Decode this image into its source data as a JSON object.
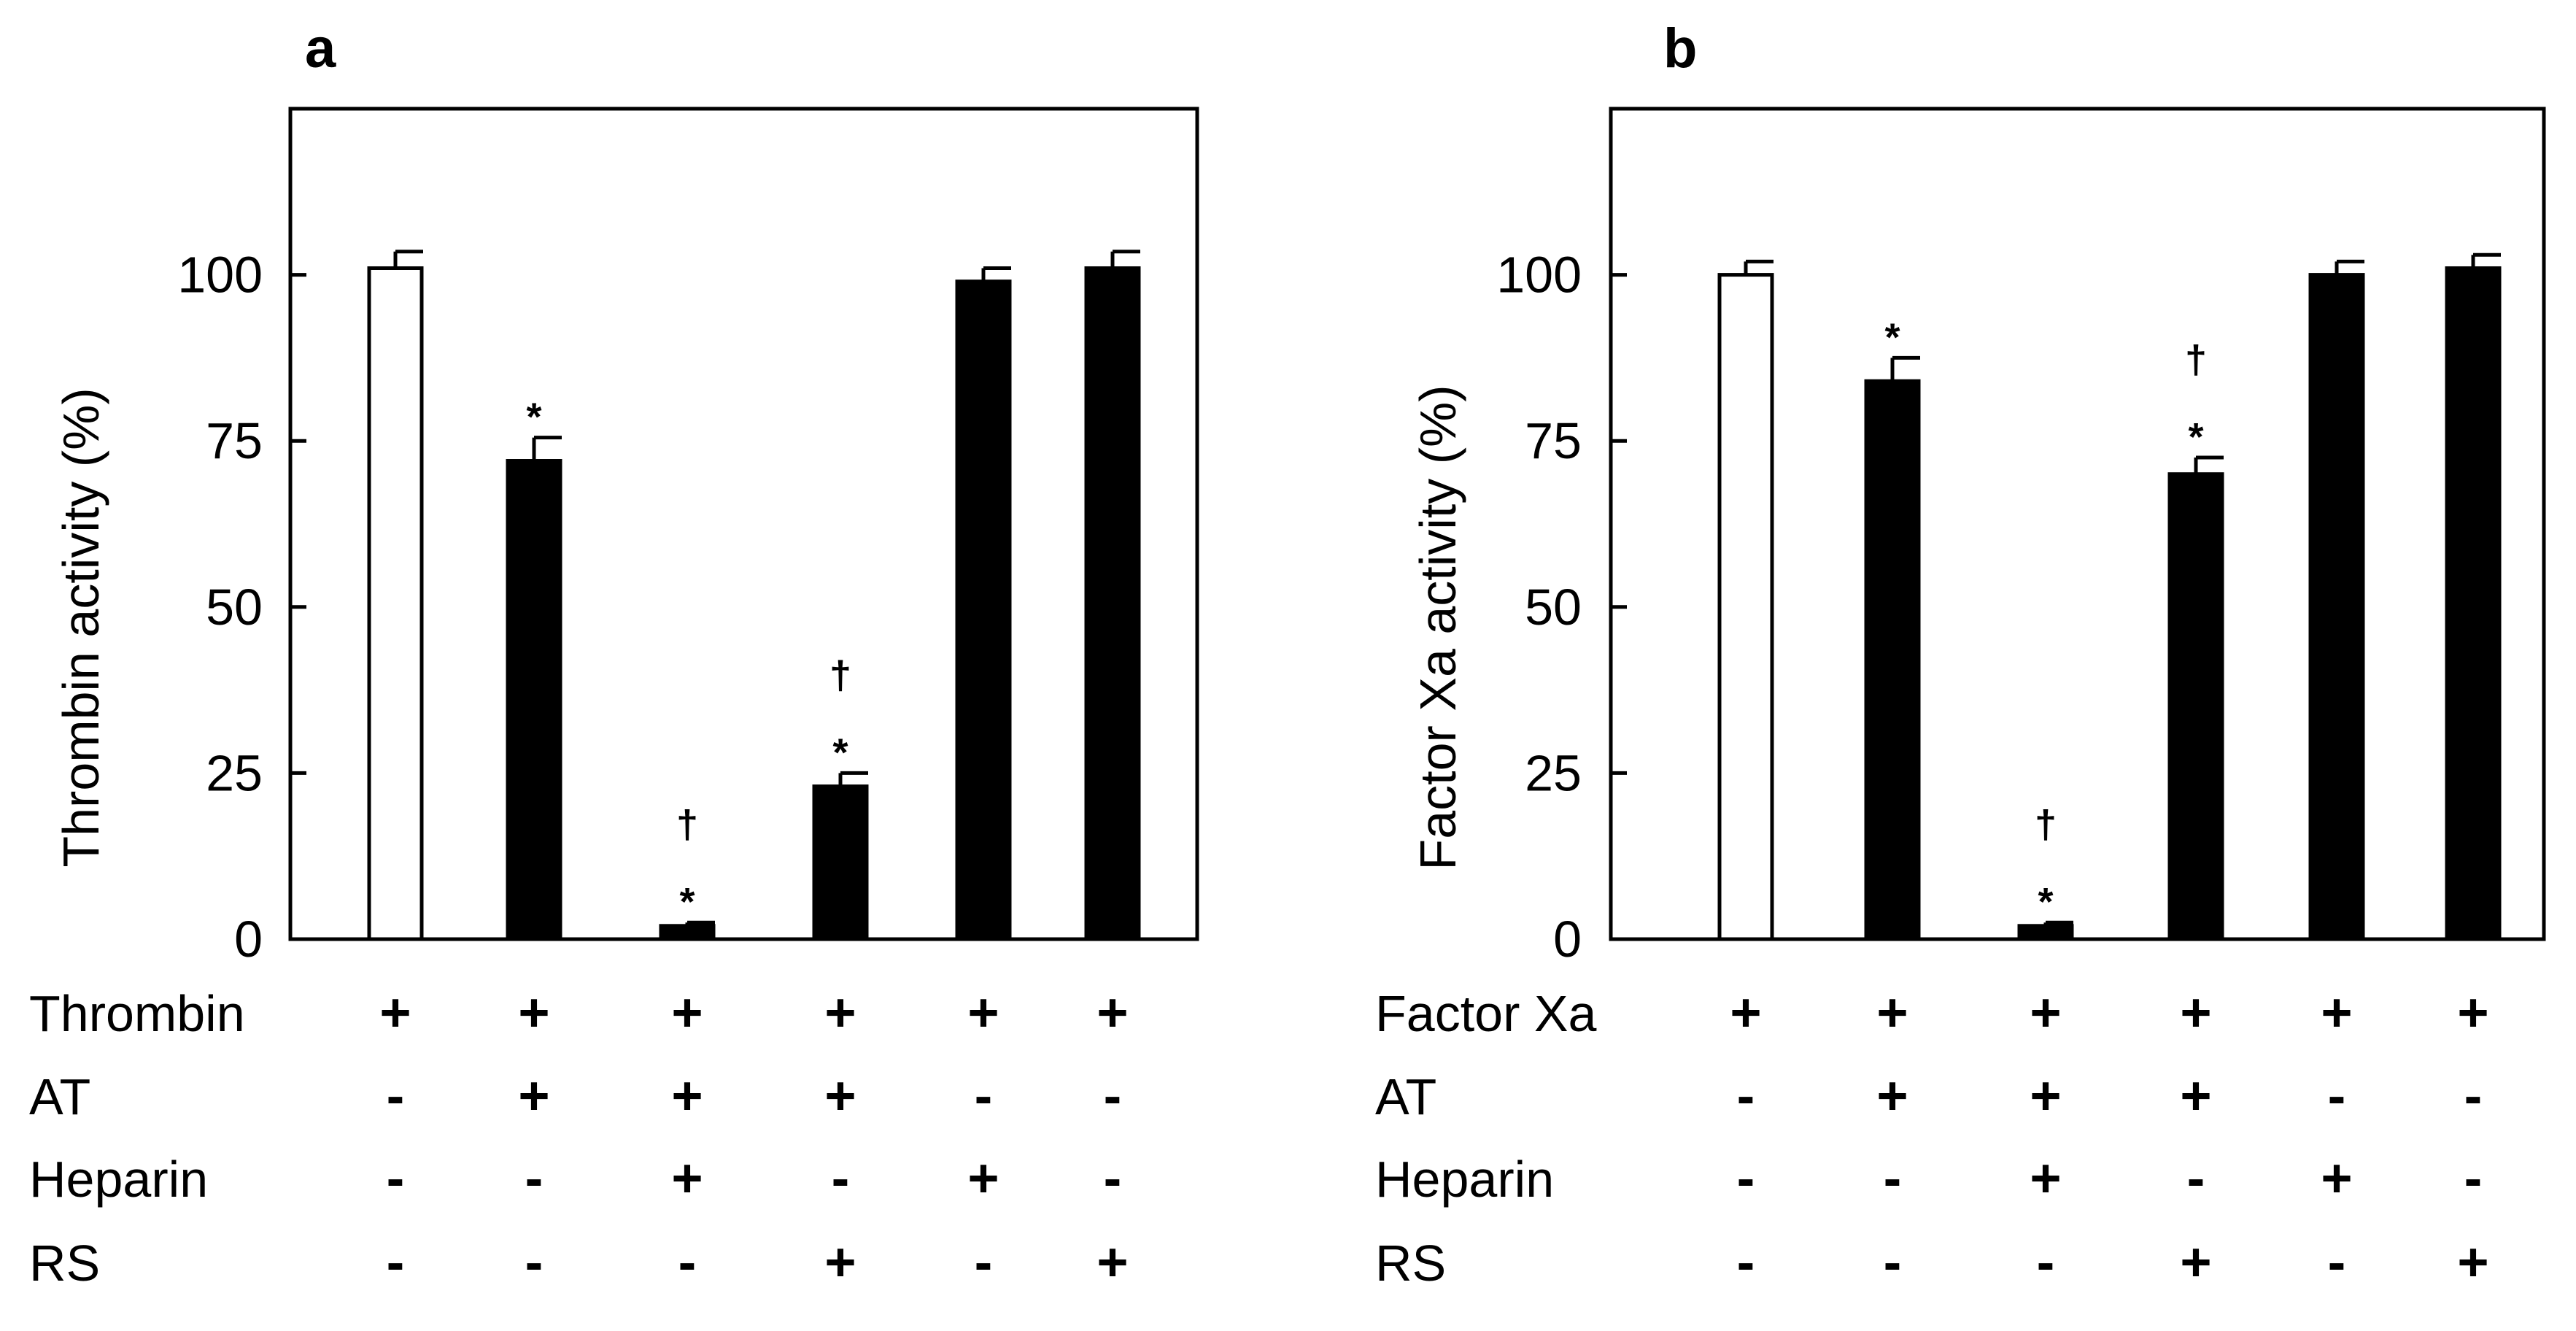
{
  "chart_data": [
    {
      "type": "bar",
      "panel": "a",
      "ylabel": "Thrombin  activity (%)",
      "ylim": [
        0,
        125
      ],
      "yticks": [
        0,
        25,
        50,
        75,
        100
      ],
      "ytick_labels": [
        "0",
        "25",
        "50",
        "75",
        "100"
      ],
      "values": [
        101,
        72,
        2,
        23,
        99,
        101
      ],
      "errors": [
        2.5,
        3.5,
        0.5,
        2.0,
        2.0,
        2.5
      ],
      "bar_colors": [
        "#ffffff",
        "#000000",
        "#000000",
        "#000000",
        "#000000",
        "#000000"
      ],
      "annotations": [
        [],
        [
          "*"
        ],
        [
          "*",
          "†"
        ],
        [
          "*",
          "†"
        ],
        [],
        []
      ],
      "condition_rows": [
        {
          "label": "Thrombin",
          "signs": [
            "+",
            "+",
            "+",
            "+",
            "+",
            "+"
          ]
        },
        {
          "label": "AT",
          "signs": [
            "-",
            "+",
            "+",
            "+",
            "-",
            "-"
          ]
        },
        {
          "label": "Heparin",
          "signs": [
            "-",
            "-",
            "+",
            "-",
            "+",
            "-"
          ]
        },
        {
          "label": "RS",
          "signs": [
            "-",
            "-",
            "-",
            "+",
            "-",
            "+"
          ]
        }
      ]
    },
    {
      "type": "bar",
      "panel": "b",
      "ylabel": "Factor Xa activity (%)",
      "ylim": [
        0,
        125
      ],
      "yticks": [
        0,
        25,
        50,
        75,
        100
      ],
      "ytick_labels": [
        "0",
        "25",
        "50",
        "75",
        "100"
      ],
      "values": [
        100,
        84,
        2,
        70,
        100,
        101
      ],
      "errors": [
        2.0,
        3.5,
        0.5,
        2.5,
        2.0,
        2.0
      ],
      "bar_colors": [
        "#ffffff",
        "#000000",
        "#000000",
        "#000000",
        "#000000",
        "#000000"
      ],
      "annotations": [
        [],
        [
          "*"
        ],
        [
          "*",
          "†"
        ],
        [
          "*",
          "†"
        ],
        [],
        []
      ],
      "condition_rows": [
        {
          "label": "Factor Xa",
          "signs": [
            "+",
            "+",
            "+",
            "+",
            "+",
            "+"
          ]
        },
        {
          "label": "AT",
          "signs": [
            "-",
            "+",
            "+",
            "+",
            "-",
            "-"
          ]
        },
        {
          "label": "Heparin",
          "signs": [
            "-",
            "-",
            "+",
            "-",
            "+",
            "-"
          ]
        },
        {
          "label": "RS",
          "signs": [
            "-",
            "-",
            "-",
            "+",
            "-",
            "+"
          ]
        }
      ]
    }
  ]
}
